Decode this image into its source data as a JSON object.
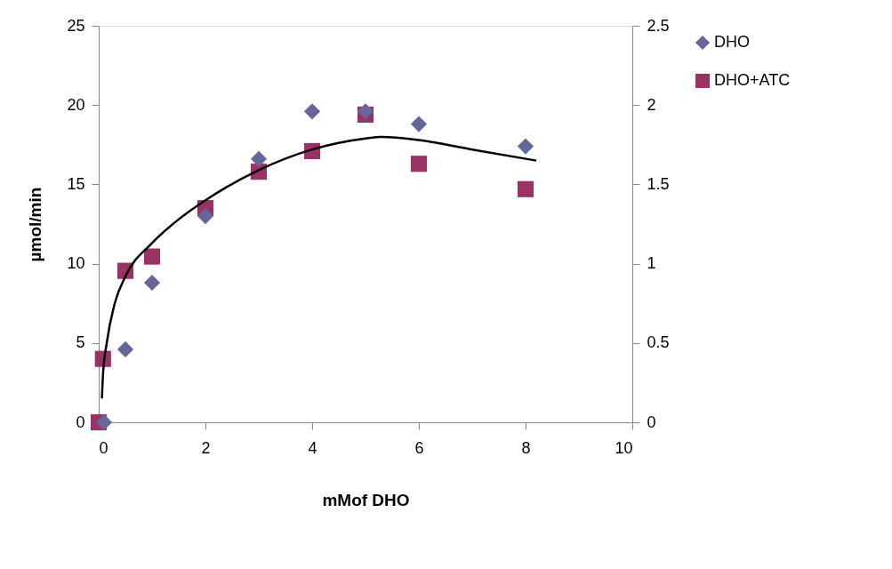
{
  "chart_data": {
    "type": "scatter",
    "xlabel": "mMof DHO",
    "ylabel": "µmol/min",
    "xlim": [
      0,
      10
    ],
    "xticks": [
      0,
      2,
      4,
      6,
      8,
      10
    ],
    "ylim": [
      0,
      25
    ],
    "yticks": [
      0,
      5,
      10,
      15,
      20,
      25
    ],
    "y2lim": [
      0,
      2.5
    ],
    "y2ticks": [
      0,
      0.5,
      1,
      1.5,
      2,
      2.5
    ],
    "grid": false,
    "legend": "right",
    "series": [
      {
        "name": "DHO",
        "color": "#666699",
        "marker": "diamond",
        "x": [
          0.1,
          0.5,
          1,
          2,
          3,
          4,
          5,
          6,
          8
        ],
        "values": [
          0,
          4.6,
          8.8,
          13.0,
          16.6,
          19.6,
          19.6,
          18.8,
          17.4
        ]
      },
      {
        "name": "DHO+ATC",
        "color": "#993366",
        "marker": "square",
        "axis": "y2",
        "x": [
          0,
          0.08,
          0.5,
          1,
          2,
          3,
          4,
          5,
          6,
          8
        ],
        "values": [
          0,
          0.4,
          0.955,
          1.045,
          1.35,
          1.58,
          1.71,
          1.94,
          1.63,
          1.47
        ]
      },
      {
        "type": "line",
        "color": "#000000",
        "line_style": "solid",
        "x": [
          0.06,
          0.08,
          0.15,
          0.3,
          0.5,
          1,
          1.5,
          2,
          3,
          4,
          5,
          5.3,
          6,
          7,
          8.2
        ],
        "values": [
          1.5,
          3,
          5,
          7.5,
          9.2,
          11.3,
          12.8,
          14,
          15.9,
          17.2,
          17.9,
          18,
          17.8,
          17.2,
          16.5
        ]
      }
    ]
  }
}
